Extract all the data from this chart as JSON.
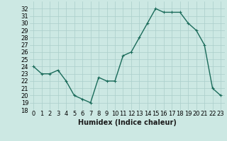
{
  "x": [
    0,
    1,
    2,
    3,
    4,
    5,
    6,
    7,
    8,
    9,
    10,
    11,
    12,
    13,
    14,
    15,
    16,
    17,
    18,
    19,
    20,
    21,
    22,
    23
  ],
  "y": [
    24,
    23,
    23,
    23.5,
    22,
    20,
    19.5,
    19,
    22.5,
    22,
    22,
    25.5,
    26,
    28,
    30,
    32,
    31.5,
    31.5,
    31.5,
    30,
    29,
    27,
    21,
    20
  ],
  "line_color": "#1a6b5a",
  "marker_color": "#1a6b5a",
  "bg_color": "#cce8e3",
  "grid_color": "#aaceca",
  "xlabel": "Humidex (Indice chaleur)",
  "ylim": [
    18,
    33
  ],
  "xlim": [
    -0.5,
    23.5
  ],
  "yticks": [
    18,
    19,
    20,
    21,
    22,
    23,
    24,
    25,
    26,
    27,
    28,
    29,
    30,
    31,
    32
  ],
  "xticks": [
    0,
    1,
    2,
    3,
    4,
    5,
    6,
    7,
    8,
    9,
    10,
    11,
    12,
    13,
    14,
    15,
    16,
    17,
    18,
    19,
    20,
    21,
    22,
    23
  ],
  "xtick_labels": [
    "0",
    "1",
    "2",
    "3",
    "4",
    "5",
    "6",
    "7",
    "8",
    "9",
    "10",
    "11",
    "12",
    "13",
    "14",
    "15",
    "16",
    "17",
    "18",
    "19",
    "20",
    "21",
    "22",
    "23"
  ],
  "line_width": 1.0,
  "marker_size": 2.5,
  "tick_fontsize": 6,
  "xlabel_fontsize": 7
}
